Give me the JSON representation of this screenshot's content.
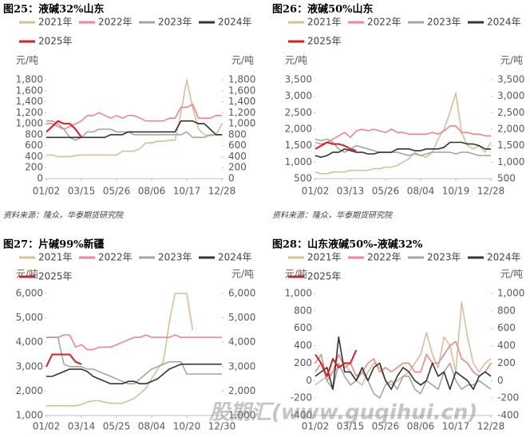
{
  "watermark": "股期汇(www.guqihui.cn)",
  "chart_data": [
    {
      "type": "line",
      "title": "图25：液碱32%山东",
      "y_label": "元/吨",
      "y2_label": "元/吨",
      "source": "资料来源：隆众，华泰期货研究院",
      "categories": [
        "01/02",
        null,
        null,
        null,
        null,
        null,
        "03/15",
        null,
        null,
        null,
        null,
        null,
        "05/26",
        null,
        null,
        null,
        null,
        null,
        "08/06",
        null,
        null,
        null,
        null,
        null,
        "10/17",
        null,
        null,
        null,
        null,
        null,
        "12/28"
      ],
      "ylim": [
        0,
        1800
      ],
      "yticks": [
        0,
        200,
        400,
        600,
        800,
        {
          "value": 1000,
          "label": "1,000"
        },
        {
          "value": 1200,
          "label": "1,200"
        },
        {
          "value": 1400,
          "label": "1,400"
        },
        {
          "value": 1600,
          "label": "1,600"
        },
        {
          "value": 1800,
          "label": "1,800"
        }
      ],
      "y2lim": [
        0,
        1800
      ],
      "y2ticks": [
        0,
        200,
        400,
        600,
        800,
        {
          "value": 1000,
          "label": "1,000"
        },
        {
          "value": 1200,
          "label": "1,200"
        },
        {
          "value": 1400,
          "label": "1,400"
        },
        {
          "value": 1600,
          "label": "1,600"
        },
        {
          "value": 1800,
          "label": "1,800"
        }
      ],
      "series": [
        {
          "name": "2021年",
          "color": "#d8bf95",
          "values": [
            430,
            430,
            400,
            400,
            400,
            420,
            430,
            430,
            430,
            430,
            430,
            430,
            430,
            500,
            500,
            500,
            550,
            650,
            650,
            680,
            680,
            700,
            700,
            1200,
            1800,
            1300,
            900,
            800,
            780,
            800,
            1000
          ]
        },
        {
          "name": "2022年",
          "color": "#f0868c",
          "values": [
            1000,
            1000,
            950,
            900,
            950,
            1000,
            1050,
            1150,
            1150,
            1200,
            1150,
            1100,
            1150,
            1100,
            1150,
            1150,
            1100,
            1050,
            1050,
            1050,
            1050,
            1100,
            1100,
            1300,
            1300,
            1350,
            1100,
            1100,
            1100,
            1150,
            1150
          ]
        },
        {
          "name": "2023年",
          "color": "#a5a5a5",
          "values": [
            1050,
            1050,
            1000,
            900,
            750,
            700,
            750,
            850,
            850,
            900,
            900,
            900,
            850,
            850,
            850,
            800,
            800,
            800,
            800,
            800,
            800,
            800,
            800,
            800,
            850,
            750,
            750,
            750,
            800,
            800,
            800
          ]
        },
        {
          "name": "2024年",
          "color": "#333333",
          "values": [
            750,
            750,
            750,
            750,
            750,
            750,
            750,
            750,
            750,
            750,
            750,
            800,
            800,
            800,
            850,
            850,
            850,
            850,
            850,
            850,
            850,
            850,
            850,
            1050,
            1050,
            1050,
            1000,
            1000,
            900,
            800,
            800
          ]
        },
        {
          "name": "2025年",
          "color": "#d81e1e",
          "values": [
            850,
            950,
            1050,
            1000,
            1000,
            900,
            750,
            null,
            null,
            null,
            null,
            null,
            null,
            null,
            null,
            null,
            null,
            null,
            null,
            null,
            null,
            null,
            null,
            null,
            null,
            null,
            null,
            null,
            null,
            null,
            null
          ]
        }
      ]
    },
    {
      "type": "line",
      "title": "图26：液碱50%山东",
      "y_label": "元/吨",
      "y2_label": "元/吨",
      "source": "资料来源：隆众，华泰期货研究院",
      "categories": [
        "01/02",
        null,
        null,
        null,
        null,
        null,
        "03/13",
        null,
        null,
        null,
        null,
        null,
        "05/26",
        null,
        null,
        null,
        null,
        null,
        "08/04",
        null,
        null,
        null,
        null,
        null,
        "10/19",
        null,
        null,
        null,
        null,
        null,
        "12/28"
      ],
      "ylim": [
        500,
        3500
      ],
      "yticks": [
        500,
        {
          "value": 1000,
          "label": "1,000"
        },
        {
          "value": 1500,
          "label": "1,500"
        },
        {
          "value": 2000,
          "label": "2,000"
        },
        {
          "value": 2500,
          "label": "2,500"
        },
        {
          "value": 3000,
          "label": "3,000"
        },
        {
          "value": 3500,
          "label": "3,500"
        }
      ],
      "y2lim": [
        500,
        3500
      ],
      "y2ticks": [
        500,
        {
          "value": 1000,
          "label": "1,000"
        },
        {
          "value": 1500,
          "label": "1,500"
        },
        {
          "value": 2000,
          "label": "2,000"
        },
        {
          "value": 2500,
          "label": "2,500"
        },
        {
          "value": 3000,
          "label": "3,000"
        },
        {
          "value": 3500,
          "label": "3,500"
        }
      ],
      "series": [
        {
          "name": "2021年",
          "color": "#d8bf95",
          "values": [
            700,
            650,
            650,
            700,
            700,
            700,
            750,
            750,
            750,
            750,
            800,
            800,
            850,
            850,
            900,
            1000,
            1100,
            1300,
            1200,
            1150,
            1300,
            1700,
            2000,
            2500,
            3100,
            1900,
            1500,
            1400,
            1500,
            1300,
            1600
          ]
        },
        {
          "name": "2022年",
          "color": "#f0868c",
          "values": [
            1600,
            1550,
            1600,
            1700,
            1800,
            1900,
            1750,
            1950,
            2000,
            1950,
            2000,
            1950,
            1900,
            2000,
            1900,
            1900,
            1850,
            1850,
            1850,
            1850,
            1900,
            1850,
            1950,
            2100,
            2100,
            1900,
            1900,
            1850,
            1850,
            1800,
            1800
          ]
        },
        {
          "name": "2023年",
          "color": "#a5a5a5",
          "values": [
            1700,
            1650,
            1700,
            1600,
            1400,
            1300,
            1400,
            1500,
            1450,
            1400,
            1350,
            1300,
            1300,
            1300,
            1300,
            1250,
            1200,
            1250,
            1200,
            1250,
            1300,
            1300,
            1300,
            1300,
            1250,
            1300,
            1300,
            1250,
            1200,
            1200,
            1200
          ]
        },
        {
          "name": "2024年",
          "color": "#333333",
          "values": [
            1200,
            1150,
            1200,
            1300,
            1300,
            1400,
            1350,
            1300,
            1300,
            1250,
            1250,
            1300,
            1300,
            1300,
            1400,
            1400,
            1400,
            1350,
            1350,
            1400,
            1400,
            1400,
            1450,
            1600,
            1600,
            1600,
            1550,
            1550,
            1500,
            1400,
            1400
          ]
        },
        {
          "name": "2025年",
          "color": "#d81e1e",
          "values": [
            1400,
            1500,
            1600,
            1550,
            1550,
            1500,
            1400,
            1350,
            null,
            null,
            null,
            null,
            null,
            null,
            null,
            null,
            null,
            null,
            null,
            null,
            null,
            null,
            null,
            null,
            null,
            null,
            null,
            null,
            null,
            null,
            null
          ]
        }
      ]
    },
    {
      "type": "line",
      "title": "图27：片碱99%新疆",
      "y_label": "元/吨",
      "y2_label": "元/吨",
      "categories": [
        "01/02",
        null,
        null,
        null,
        null,
        null,
        "03/14",
        null,
        null,
        null,
        null,
        null,
        "05/25",
        null,
        null,
        null,
        null,
        null,
        "08/04",
        null,
        null,
        null,
        null,
        null,
        "10/20",
        null,
        null,
        null,
        null,
        null,
        "12/30"
      ],
      "ylim": [
        1000,
        6000
      ],
      "yticks": [
        {
          "value": 1000,
          "label": "1,000"
        },
        {
          "value": 2000,
          "label": "2,000"
        },
        {
          "value": 3000,
          "label": "3,000"
        },
        {
          "value": 4000,
          "label": "4,000"
        },
        {
          "value": 5000,
          "label": "5,000"
        },
        {
          "value": 6000,
          "label": "6,000"
        }
      ],
      "y2lim": [
        1000,
        6000
      ],
      "y2ticks": [
        {
          "value": 1000,
          "label": "1,000"
        },
        {
          "value": 2000,
          "label": "2,000"
        },
        {
          "value": 3000,
          "label": "3,000"
        },
        {
          "value": 4000,
          "label": "4,000"
        },
        {
          "value": 5000,
          "label": "5,000"
        },
        {
          "value": 6000,
          "label": "6,000"
        }
      ],
      "series": [
        {
          "name": "2021年",
          "color": "#d8bf95",
          "values": [
            1400,
            1400,
            1400,
            1400,
            1400,
            1400,
            1450,
            1550,
            1600,
            1600,
            1550,
            1500,
            1500,
            1500,
            1600,
            1700,
            1900,
            2100,
            2500,
            2900,
            3200,
            4800,
            6000,
            6000,
            6000,
            4500,
            null,
            null,
            null,
            null,
            null
          ]
        },
        {
          "name": "2022年",
          "color": "#f0868c",
          "values": [
            4200,
            4200,
            4200,
            4300,
            4300,
            3800,
            3900,
            3700,
            3700,
            3800,
            3800,
            3800,
            3900,
            4000,
            4100,
            4200,
            4200,
            4300,
            4200,
            4200,
            4200,
            4200,
            4300,
            4200,
            4200,
            4200,
            4200,
            4200,
            4200,
            4200,
            4200
          ]
        },
        {
          "name": "2023年",
          "color": "#a5a5a5",
          "values": [
            4200,
            4200,
            4200,
            3100,
            3000,
            3000,
            3000,
            2900,
            2900,
            2800,
            2700,
            2600,
            2500,
            2400,
            2300,
            2300,
            2500,
            2700,
            2900,
            3000,
            3100,
            3200,
            3200,
            3200,
            2700,
            2700,
            2700,
            2700,
            2700,
            2700,
            2700
          ]
        },
        {
          "name": "2024年",
          "color": "#333333",
          "values": [
            2600,
            2600,
            2700,
            2800,
            2900,
            2900,
            2900,
            2800,
            2600,
            2500,
            2400,
            2300,
            2300,
            2300,
            2400,
            2400,
            2300,
            2300,
            2400,
            2500,
            2700,
            2900,
            3000,
            3100,
            3100,
            3100,
            3100,
            3100,
            3100,
            3100,
            3100
          ]
        },
        {
          "name": "2025年",
          "color": "#d81e1e",
          "values": [
            3000,
            3500,
            3500,
            3500,
            3500,
            3200,
            3100,
            null,
            null,
            null,
            null,
            null,
            null,
            null,
            null,
            null,
            null,
            null,
            null,
            null,
            null,
            null,
            null,
            null,
            null,
            null,
            null,
            null,
            null,
            null,
            null
          ]
        }
      ]
    },
    {
      "type": "line",
      "title": "图28：山东液碱50%-液碱32%",
      "y_label": "元/吨",
      "y2_label": "元/吨",
      "categories": [
        "01/02",
        null,
        null,
        null,
        null,
        null,
        "03/15",
        null,
        null,
        null,
        null,
        null,
        "05/26",
        null,
        null,
        null,
        null,
        null,
        "08/06",
        null,
        null,
        null,
        null,
        null,
        "10/17",
        null,
        null,
        null,
        null,
        null,
        "12/28"
      ],
      "ylim": [
        -400,
        1000
      ],
      "yticks": [
        -400,
        -200,
        0,
        200,
        400,
        600,
        800,
        {
          "value": 1000,
          "label": "1,000"
        }
      ],
      "y2lim": [
        -400,
        1000
      ],
      "y2ticks": [
        -400,
        -200,
        0,
        200,
        400,
        600,
        800,
        {
          "value": 1000,
          "label": "1,000"
        }
      ],
      "series": [
        {
          "name": "2021年",
          "color": "#d8bf95",
          "values": [
            -50,
            0,
            50,
            100,
            150,
            200,
            100,
            0,
            -50,
            100,
            200,
            150,
            0,
            -50,
            0,
            50,
            100,
            200,
            300,
            550,
            300,
            150,
            500,
            400,
            100,
            900,
            500,
            200,
            100,
            200,
            250
          ]
        },
        {
          "name": "2022年",
          "color": "#f0868c",
          "values": [
            100,
            200,
            0,
            100,
            300,
            150,
            200,
            50,
            100,
            200,
            250,
            100,
            150,
            100,
            150,
            200,
            200,
            100,
            100,
            300,
            200,
            200,
            300,
            400,
            450,
            250,
            200,
            100,
            50,
            100,
            200
          ]
        },
        {
          "name": "2023年",
          "color": "#a5a5a5",
          "values": [
            200,
            300,
            0,
            -100,
            200,
            50,
            -50,
            0,
            100,
            0,
            -150,
            -200,
            -50,
            0,
            -100,
            50,
            50,
            -100,
            -150,
            0,
            -50,
            -100,
            100,
            200,
            0,
            -100,
            -50,
            -50,
            0,
            -50,
            -100
          ]
        },
        {
          "name": "2024年",
          "color": "#333333",
          "values": [
            50,
            100,
            150,
            -100,
            500,
            100,
            100,
            0,
            150,
            0,
            150,
            200,
            0,
            -100,
            50,
            150,
            100,
            0,
            -50,
            0,
            200,
            50,
            100,
            -100,
            100,
            50,
            0,
            -100,
            50,
            100,
            50
          ]
        },
        {
          "name": "2025年",
          "color": "#d81e1e",
          "values": [
            300,
            200,
            50,
            250,
            150,
            200,
            200,
            350,
            null,
            null,
            null,
            null,
            null,
            null,
            null,
            null,
            null,
            null,
            null,
            null,
            null,
            null,
            null,
            null,
            null,
            null,
            null,
            null,
            null,
            null,
            null
          ]
        }
      ]
    }
  ]
}
